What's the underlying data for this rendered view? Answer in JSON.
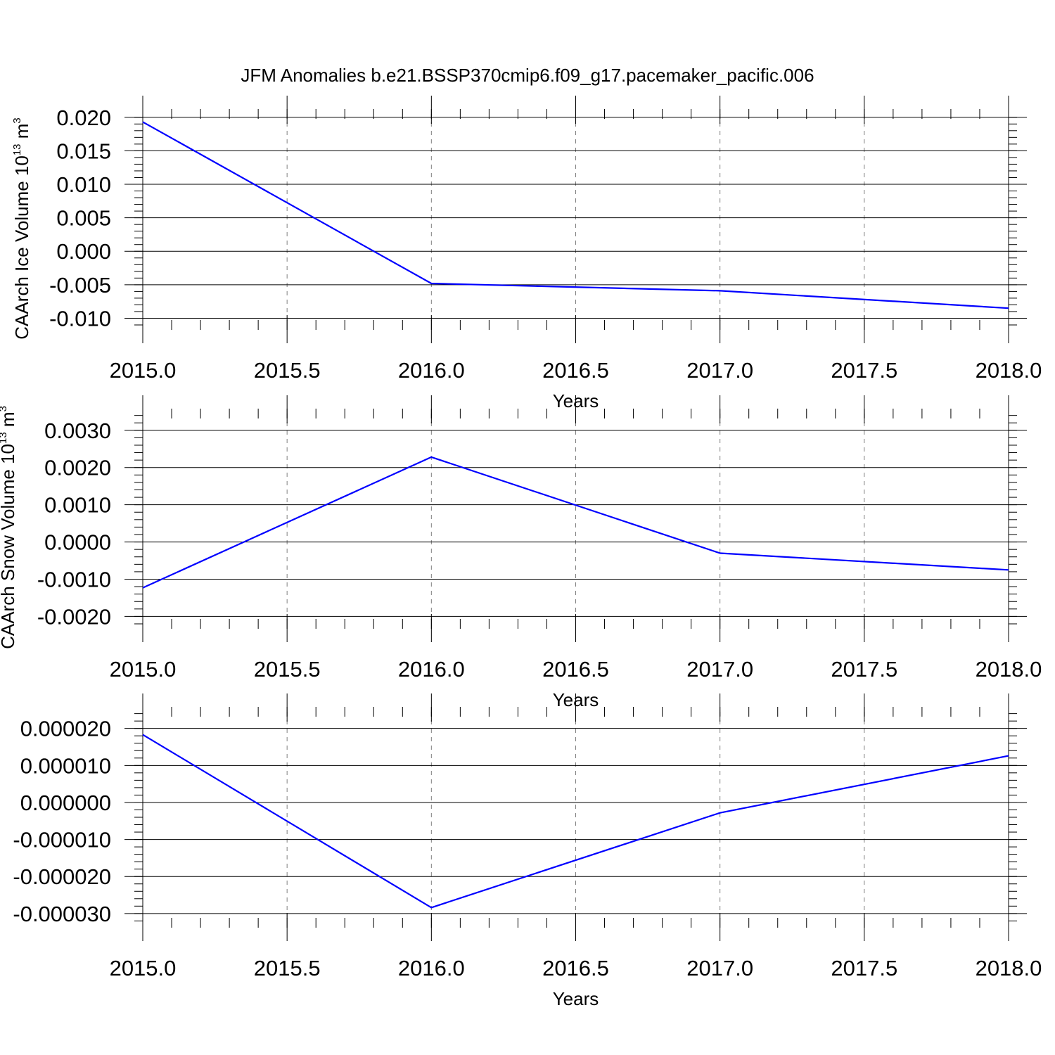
{
  "title": "JFM Anomalies b.e21.BSSP370cmip6.f09_g17.pacemaker_pacific.006",
  "colors": {
    "series": "#0000ff",
    "grid": "#808080",
    "axis": "#000000"
  },
  "chart_data": [
    {
      "type": "line",
      "xlabel": "Years",
      "ylabel": {
        "main": "CAArch Ice Volume 10",
        "sup1": "13",
        "mid": " m",
        "sup2": "3"
      },
      "xlim": [
        2015.0,
        2018.0
      ],
      "ylim": [
        -0.011,
        0.0205
      ],
      "x_ticks": [
        "2015.0",
        "2015.5",
        "2016.0",
        "2016.5",
        "2017.0",
        "2017.5",
        "2018.0"
      ],
      "y_ticks": [
        "0.020",
        "0.015",
        "0.010",
        "0.005",
        "0.000",
        "-0.005",
        "-0.010"
      ],
      "grid": "vertical dashed at major x ticks",
      "series": [
        {
          "x": [
            2015,
            2016,
            2017,
            2018
          ],
          "values": [
            0.0193,
            -0.0048,
            -0.0059,
            -0.0085
          ]
        }
      ]
    },
    {
      "type": "line",
      "xlabel": "Years",
      "ylabel": {
        "main": "CAArch Snow Volume 10",
        "sup1": "13",
        "mid": " m",
        "sup2": "3"
      },
      "xlim": [
        2015.0,
        2018.0
      ],
      "ylim": [
        -0.0022,
        0.00345
      ],
      "x_ticks": [
        "2015.0",
        "2015.5",
        "2016.0",
        "2016.5",
        "2017.0",
        "2017.5",
        "2018.0"
      ],
      "y_ticks": [
        "0.0030",
        "0.0020",
        "0.0010",
        "0.0000",
        "-0.0010",
        "-0.0020"
      ],
      "grid": "vertical dashed at major x ticks",
      "series": [
        {
          "x": [
            2015,
            2016,
            2017,
            2018
          ],
          "values": [
            -0.00123,
            0.00228,
            -0.0003,
            -0.00075
          ]
        }
      ]
    },
    {
      "type": "line",
      "xlabel": "Years",
      "ylabel": null,
      "xlim": [
        2015.0,
        2018.0
      ],
      "ylim": [
        -3.25e-05,
        2.45e-05
      ],
      "x_ticks": [
        "2015.0",
        "2015.5",
        "2016.0",
        "2016.5",
        "2017.0",
        "2017.5",
        "2018.0"
      ],
      "y_ticks": [
        "0.000020",
        "0.000010",
        "0.000000",
        "-0.000010",
        "-0.000020",
        "-0.000030"
      ],
      "grid": "vertical dashed at major x ticks",
      "series": [
        {
          "x": [
            2015,
            2016,
            2017,
            2018
          ],
          "values": [
            1.83e-05,
            -2.84e-05,
            -2.8e-06,
            1.26e-05
          ]
        }
      ]
    }
  ]
}
